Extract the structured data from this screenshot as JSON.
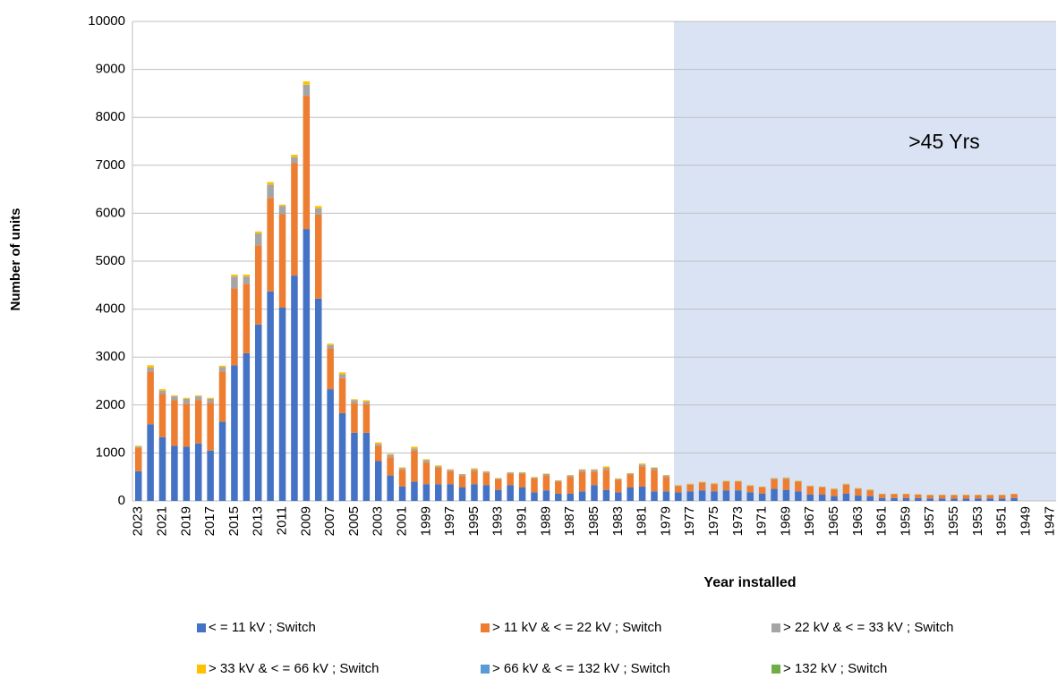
{
  "chart_data": {
    "type": "stacked_bar",
    "ylabel": "Number of units",
    "xlabel": "Year installed",
    "annotation": ">45 Yrs",
    "categories": [
      "2023",
      null,
      "2021",
      null,
      "2019",
      null,
      "2017",
      null,
      "2015",
      null,
      "2013",
      null,
      "2011",
      null,
      "2009",
      null,
      "2007",
      null,
      "2005",
      null,
      "2003",
      null,
      "2001",
      null,
      "1999",
      null,
      "1997",
      null,
      "1995",
      null,
      "1993",
      null,
      "1991",
      null,
      "1989",
      null,
      "1987",
      null,
      "1985",
      null,
      "1983",
      null,
      "1981",
      null,
      "1979",
      null,
      "1977",
      null,
      "1975",
      null,
      "1973",
      null,
      "1971",
      null,
      "1969",
      null,
      "1967",
      null,
      "1965",
      null,
      "1963",
      null,
      "1961",
      null,
      "1959",
      null,
      "1957",
      null,
      "1955",
      null,
      "1953",
      null,
      "1951",
      null,
      "1949",
      null,
      "1947"
    ],
    "series": [
      {
        "name": "< = 11 kV ; Switch",
        "color": "#4472c4",
        "values": [
          620,
          1600,
          1330,
          1150,
          1130,
          1200,
          1050,
          1650,
          2830,
          3080,
          3680,
          4370,
          4030,
          4700,
          5670,
          4220,
          2330,
          1830,
          1420,
          1420,
          830,
          530,
          300,
          400,
          350,
          350,
          350,
          280,
          350,
          330,
          230,
          330,
          280,
          180,
          220,
          150,
          150,
          200,
          330,
          230,
          180,
          280,
          300,
          200,
          200,
          180,
          200,
          220,
          200,
          220,
          220,
          180,
          150,
          250,
          230,
          200,
          130,
          130,
          100,
          150,
          110,
          100,
          60,
          60,
          60,
          60,
          50,
          50,
          50,
          50,
          50,
          50,
          50,
          60,
          0,
          0,
          0
        ]
      },
      {
        "name": "> 11 kV & < = 22 kV ; Switch",
        "color": "#ed7d31",
        "values": [
          480,
          1100,
          900,
          950,
          900,
          900,
          1000,
          1050,
          1600,
          1450,
          1650,
          1950,
          1950,
          2350,
          2780,
          1750,
          850,
          730,
          620,
          600,
          320,
          380,
          350,
          650,
          450,
          340,
          270,
          240,
          280,
          250,
          220,
          230,
          280,
          290,
          310,
          250,
          350,
          410,
          280,
          420,
          260,
          270,
          420,
          450,
          300,
          130,
          140,
          160,
          150,
          180,
          180,
          130,
          130,
          200,
          230,
          200,
          170,
          150,
          140,
          190,
          140,
          120,
          80,
          80,
          80,
          70,
          70,
          70,
          70,
          70,
          70,
          70,
          70,
          80,
          0,
          0,
          0
        ]
      },
      {
        "name": "> 22 kV & < = 33 kV ; Switch",
        "color": "#a5a5a5",
        "values": [
          30,
          80,
          70,
          80,
          100,
          80,
          80,
          90,
          250,
          150,
          250,
          280,
          170,
          120,
          230,
          130,
          70,
          80,
          60,
          50,
          40,
          50,
          30,
          40,
          50,
          30,
          30,
          30,
          30,
          30,
          20,
          30,
          30,
          20,
          30,
          20,
          30,
          40,
          40,
          40,
          20,
          20,
          40,
          40,
          30,
          10,
          10,
          10,
          10,
          10,
          10,
          10,
          10,
          20,
          20,
          10,
          10,
          10,
          10,
          10,
          10,
          10,
          5,
          5,
          5,
          5,
          5,
          5,
          5,
          5,
          5,
          5,
          5,
          5,
          0,
          0,
          0
        ]
      },
      {
        "name": "> 33 kV & < = 66 kV ; Switch",
        "color": "#ffc000",
        "values": [
          20,
          50,
          30,
          20,
          20,
          20,
          20,
          30,
          40,
          40,
          40,
          50,
          30,
          50,
          70,
          50,
          30,
          40,
          20,
          30,
          30,
          20,
          20,
          40,
          20,
          20,
          10,
          10,
          20,
          10,
          10,
          10,
          10,
          10,
          10,
          10,
          10,
          10,
          10,
          30,
          10,
          10,
          20,
          10,
          10,
          10,
          10,
          10,
          10,
          10,
          10,
          10,
          10,
          10,
          10,
          10,
          10,
          10,
          10,
          10,
          10,
          10,
          5,
          5,
          5,
          5,
          5,
          5,
          5,
          5,
          5,
          5,
          5,
          5,
          0,
          0,
          0
        ]
      },
      {
        "name": "> 66 kV & < = 132 kV ; Switch",
        "color": "#5b9bd5",
        "values": [
          0,
          0,
          0,
          0,
          0,
          0,
          0,
          0,
          0,
          0,
          0,
          0,
          0,
          0,
          0,
          0,
          0,
          0,
          0,
          0,
          0,
          0,
          0,
          0,
          0,
          0,
          0,
          0,
          0,
          0,
          0,
          0,
          0,
          0,
          0,
          0,
          0,
          0,
          0,
          0,
          0,
          0,
          0,
          0,
          0,
          0,
          0,
          0,
          0,
          0,
          0,
          0,
          0,
          0,
          0,
          0,
          0,
          0,
          0,
          0,
          0,
          0,
          0,
          0,
          0,
          0,
          0,
          0,
          0,
          0,
          0,
          0,
          0,
          0,
          0,
          0,
          0
        ]
      },
      {
        "name": "> 132 kV ; Switch",
        "color": "#70ad47",
        "values": [
          0,
          0,
          0,
          0,
          0,
          0,
          0,
          0,
          0,
          0,
          0,
          0,
          0,
          0,
          0,
          0,
          0,
          0,
          0,
          0,
          0,
          0,
          0,
          0,
          0,
          0,
          0,
          0,
          0,
          0,
          0,
          0,
          0,
          0,
          0,
          0,
          0,
          0,
          0,
          0,
          0,
          0,
          0,
          0,
          0,
          0,
          0,
          0,
          0,
          0,
          0,
          0,
          0,
          0,
          0,
          0,
          0,
          0,
          0,
          0,
          0,
          0,
          0,
          0,
          0,
          0,
          0,
          0,
          0,
          0,
          0,
          0,
          0,
          0,
          0,
          0,
          0
        ]
      }
    ],
    "ylim": [
      0,
      10000
    ],
    "yticks": [
      0,
      1000,
      2000,
      3000,
      4000,
      5000,
      6000,
      7000,
      8000,
      9000,
      10000
    ],
    "grid": true
  }
}
